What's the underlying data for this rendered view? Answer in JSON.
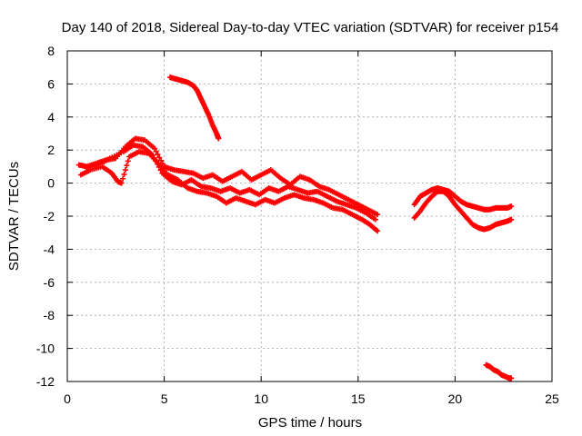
{
  "chart_data": {
    "type": "scatter",
    "title": "Day 140 of 2018, Sidereal Day-to-day VTEC variation (SDTVAR) for receiver p154",
    "xlabel": "GPS time / hours",
    "ylabel": "SDTVAR / TECUs",
    "xlim": [
      0,
      25
    ],
    "ylim": [
      -12,
      8
    ],
    "xticks": [
      "0",
      "5",
      "10",
      "15",
      "20",
      "25"
    ],
    "yticks": [
      "-12",
      "-10",
      "-8",
      "-6",
      "-4",
      "-2",
      "0",
      "2",
      "4",
      "6",
      "8"
    ],
    "grid": true,
    "marker": "plus",
    "series_color": "#ff0000",
    "series": [
      {
        "name": "track-main-upper",
        "points": [
          [
            0.6,
            1.1
          ],
          [
            1.0,
            1.0
          ],
          [
            1.5,
            1.2
          ],
          [
            2.0,
            1.4
          ],
          [
            2.5,
            1.5
          ],
          [
            3.0,
            2.2
          ],
          [
            3.5,
            2.7
          ],
          [
            4.0,
            2.6
          ],
          [
            4.5,
            2.1
          ],
          [
            5.0,
            1.0
          ],
          [
            5.5,
            0.8
          ],
          [
            6.0,
            0.7
          ],
          [
            6.5,
            0.6
          ],
          [
            7.0,
            0.3
          ],
          [
            7.5,
            0.5
          ],
          [
            8.0,
            0.1
          ],
          [
            8.5,
            0.4
          ],
          [
            9.0,
            0.7
          ],
          [
            9.5,
            0.2
          ],
          [
            10.0,
            0.5
          ],
          [
            10.5,
            0.8
          ],
          [
            11.0,
            0.3
          ],
          [
            11.5,
            -0.1
          ],
          [
            12.0,
            0.4
          ],
          [
            12.5,
            0.2
          ],
          [
            13.0,
            -0.2
          ],
          [
            13.5,
            -0.4
          ],
          [
            14.0,
            -0.7
          ],
          [
            14.5,
            -1.0
          ],
          [
            15.0,
            -1.3
          ],
          [
            15.5,
            -1.6
          ],
          [
            16.0,
            -1.9
          ]
        ]
      },
      {
        "name": "track-main-lower",
        "points": [
          [
            0.7,
            0.5
          ],
          [
            1.2,
            0.8
          ],
          [
            1.8,
            1.0
          ],
          [
            2.3,
            0.6
          ],
          [
            2.6,
            0.1
          ],
          [
            2.8,
            0.0
          ],
          [
            3.2,
            1.6
          ],
          [
            3.7,
            1.9
          ],
          [
            4.2,
            1.8
          ],
          [
            4.7,
            1.2
          ],
          [
            5.2,
            0.5
          ],
          [
            5.7,
            0.2
          ],
          [
            6.2,
            -0.3
          ],
          [
            6.7,
            -0.5
          ],
          [
            7.2,
            -0.6
          ],
          [
            7.7,
            -0.8
          ],
          [
            8.2,
            -1.2
          ],
          [
            8.7,
            -0.9
          ],
          [
            9.2,
            -1.1
          ],
          [
            9.7,
            -1.3
          ],
          [
            10.2,
            -1.0
          ],
          [
            10.7,
            -1.2
          ],
          [
            11.2,
            -0.9
          ],
          [
            11.7,
            -0.7
          ],
          [
            12.2,
            -0.9
          ],
          [
            12.7,
            -1.0
          ],
          [
            13.2,
            -1.2
          ],
          [
            13.7,
            -1.5
          ],
          [
            14.2,
            -1.6
          ],
          [
            14.7,
            -1.9
          ],
          [
            15.2,
            -2.2
          ],
          [
            15.6,
            -2.5
          ],
          [
            16.0,
            -2.9
          ]
        ]
      },
      {
        "name": "track-main-middle",
        "points": [
          [
            1.0,
            0.9
          ],
          [
            1.6,
            1.1
          ],
          [
            2.2,
            1.5
          ],
          [
            2.9,
            1.9
          ],
          [
            3.4,
            2.3
          ],
          [
            3.9,
            2.2
          ],
          [
            4.4,
            1.7
          ],
          [
            4.9,
            0.6
          ],
          [
            5.4,
            0.1
          ],
          [
            5.9,
            -0.1
          ],
          [
            6.4,
            0.2
          ],
          [
            6.9,
            -0.2
          ],
          [
            7.4,
            -0.3
          ],
          [
            7.9,
            -0.5
          ],
          [
            8.4,
            -0.3
          ],
          [
            8.9,
            -0.6
          ],
          [
            9.4,
            -0.4
          ],
          [
            9.9,
            -0.7
          ],
          [
            10.4,
            -0.3
          ],
          [
            10.9,
            -0.5
          ],
          [
            11.4,
            -0.2
          ],
          [
            11.9,
            -0.4
          ],
          [
            12.4,
            -0.6
          ],
          [
            12.9,
            -0.5
          ],
          [
            13.4,
            -0.8
          ],
          [
            13.9,
            -1.1
          ],
          [
            14.4,
            -1.3
          ],
          [
            14.9,
            -1.5
          ],
          [
            15.4,
            -1.8
          ],
          [
            15.9,
            -2.2
          ]
        ]
      },
      {
        "name": "track-early-high",
        "points": [
          [
            5.3,
            6.4
          ],
          [
            5.6,
            6.3
          ],
          [
            5.9,
            6.2
          ],
          [
            6.2,
            6.1
          ],
          [
            6.5,
            5.9
          ],
          [
            6.7,
            5.6
          ],
          [
            6.9,
            5.1
          ],
          [
            7.1,
            4.6
          ],
          [
            7.3,
            4.1
          ],
          [
            7.5,
            3.5
          ],
          [
            7.7,
            3.0
          ],
          [
            7.8,
            2.7
          ]
        ]
      },
      {
        "name": "track-evening-upper",
        "points": [
          [
            17.9,
            -1.3
          ],
          [
            18.2,
            -0.8
          ],
          [
            18.5,
            -0.6
          ],
          [
            18.8,
            -0.4
          ],
          [
            19.1,
            -0.3
          ],
          [
            19.4,
            -0.4
          ],
          [
            19.7,
            -0.5
          ],
          [
            20.0,
            -0.8
          ],
          [
            20.3,
            -1.1
          ],
          [
            20.6,
            -1.3
          ],
          [
            20.9,
            -1.4
          ],
          [
            21.2,
            -1.5
          ],
          [
            21.5,
            -1.6
          ],
          [
            21.8,
            -1.6
          ],
          [
            22.1,
            -1.5
          ],
          [
            22.4,
            -1.5
          ],
          [
            22.7,
            -1.5
          ],
          [
            22.9,
            -1.4
          ]
        ]
      },
      {
        "name": "track-evening-lower",
        "points": [
          [
            17.9,
            -2.1
          ],
          [
            18.2,
            -1.7
          ],
          [
            18.5,
            -1.2
          ],
          [
            18.8,
            -0.8
          ],
          [
            19.1,
            -0.5
          ],
          [
            19.4,
            -0.5
          ],
          [
            19.7,
            -0.8
          ],
          [
            20.0,
            -1.3
          ],
          [
            20.3,
            -1.7
          ],
          [
            20.6,
            -2.1
          ],
          [
            20.9,
            -2.5
          ],
          [
            21.2,
            -2.7
          ],
          [
            21.5,
            -2.8
          ],
          [
            21.8,
            -2.7
          ],
          [
            22.1,
            -2.5
          ],
          [
            22.4,
            -2.4
          ],
          [
            22.7,
            -2.3
          ],
          [
            22.9,
            -2.2
          ]
        ]
      },
      {
        "name": "track-late-low",
        "points": [
          [
            21.6,
            -11.0
          ],
          [
            21.8,
            -11.1
          ],
          [
            22.0,
            -11.3
          ],
          [
            22.2,
            -11.4
          ],
          [
            22.4,
            -11.6
          ],
          [
            22.6,
            -11.7
          ],
          [
            22.8,
            -11.8
          ],
          [
            22.9,
            -11.8
          ]
        ]
      }
    ]
  }
}
